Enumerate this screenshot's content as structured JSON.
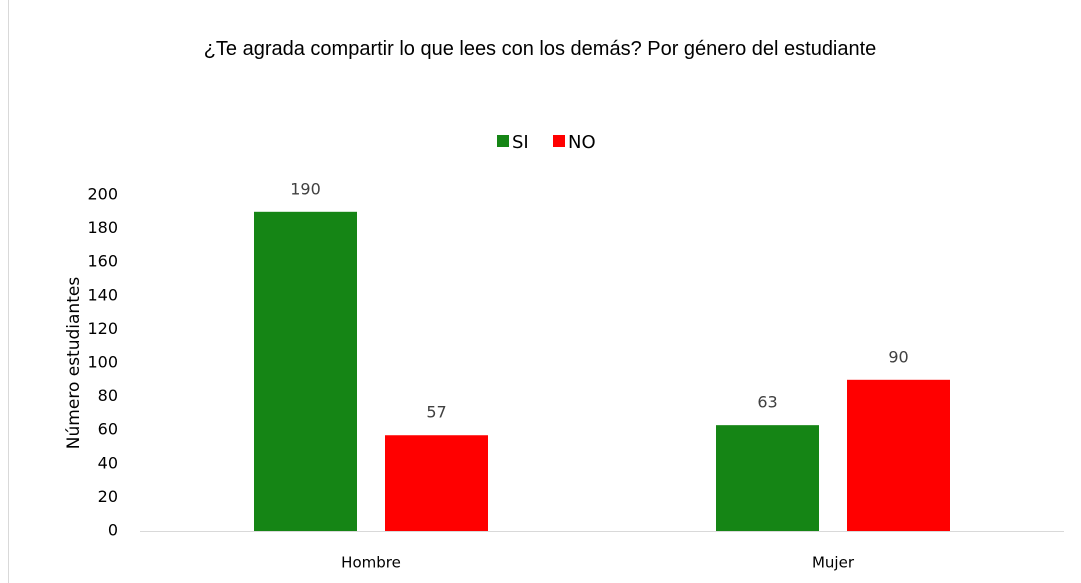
{
  "chart_data": {
    "type": "bar",
    "title": "¿Te agrada compartir lo que lees con los demás? Por género del estudiante",
    "y_label": "Número estudiantes",
    "categories": [
      "Hombre",
      "Mujer"
    ],
    "series": [
      {
        "name": "SI",
        "color": "#158515",
        "values": [
          190,
          63
        ]
      },
      {
        "name": "NO",
        "color": "#ff0000",
        "values": [
          57,
          90
        ]
      }
    ],
    "ylim": [
      0,
      200
    ],
    "yticks": [
      0,
      20,
      40,
      60,
      80,
      100,
      120,
      140,
      160,
      180,
      200
    ],
    "legend": "top",
    "grid": false
  }
}
